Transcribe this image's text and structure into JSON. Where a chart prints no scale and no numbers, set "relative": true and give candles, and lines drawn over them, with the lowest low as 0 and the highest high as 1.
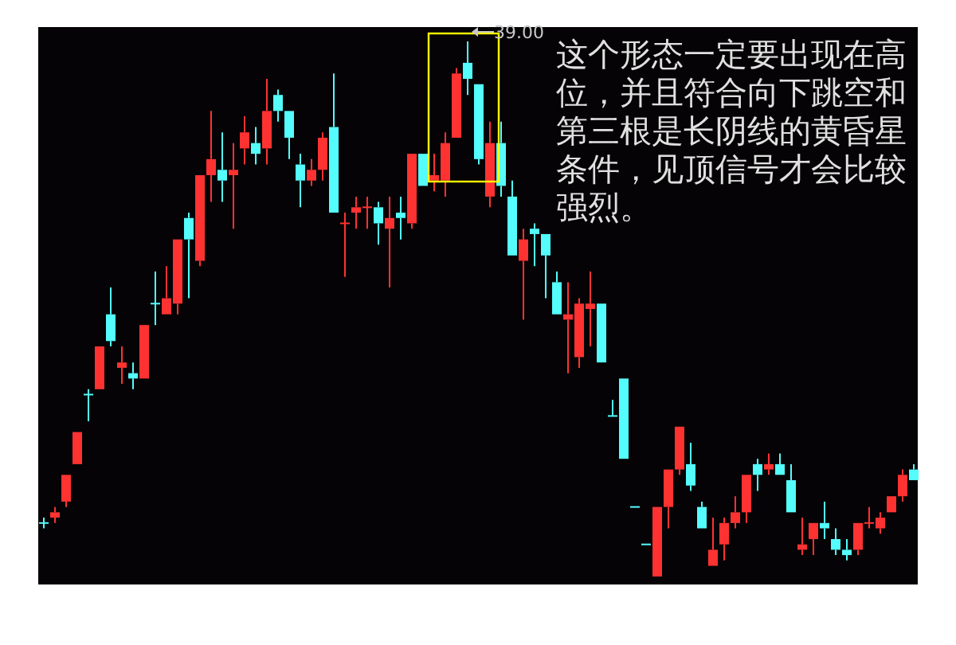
{
  "chart_data": {
    "type": "candlestick",
    "relative": true,
    "categories": [
      null,
      null,
      null,
      null,
      null,
      null,
      null,
      null,
      null,
      null,
      null,
      null,
      null,
      null,
      null,
      null,
      null,
      null,
      null,
      null,
      null,
      null,
      null,
      null,
      null,
      null,
      null,
      null,
      null,
      null,
      null,
      null,
      null,
      null,
      null,
      null,
      null,
      null,
      null,
      null,
      null,
      null,
      null,
      null,
      null,
      null,
      null,
      null,
      null,
      null,
      null,
      null,
      null,
      null,
      null,
      null,
      null,
      null,
      null,
      null,
      null,
      null,
      null,
      null,
      null,
      null,
      null,
      null,
      null,
      null,
      null,
      null,
      null,
      null,
      null,
      null,
      null,
      null,
      null
    ],
    "ohlc": [
      [
        0.1,
        0.11,
        0.09,
        0.1
      ],
      [
        0.11,
        0.13,
        0.1,
        0.12
      ],
      [
        0.14,
        0.19,
        0.13,
        0.19
      ],
      [
        0.21,
        0.27,
        0.21,
        0.27
      ],
      [
        0.34,
        0.35,
        0.29,
        0.34
      ],
      [
        0.35,
        0.43,
        0.35,
        0.43
      ],
      [
        0.49,
        0.54,
        0.43,
        0.44
      ],
      [
        0.39,
        0.43,
        0.36,
        0.4
      ],
      [
        0.38,
        0.4,
        0.35,
        0.37
      ],
      [
        0.37,
        0.47,
        0.37,
        0.47
      ],
      [
        0.51,
        0.57,
        0.47,
        0.51
      ],
      [
        0.49,
        0.58,
        0.49,
        0.52
      ],
      [
        0.51,
        0.63,
        0.49,
        0.63
      ],
      [
        0.67,
        0.68,
        0.52,
        0.63
      ],
      [
        0.59,
        0.75,
        0.58,
        0.75
      ],
      [
        0.75,
        0.87,
        0.7,
        0.78
      ],
      [
        0.76,
        0.83,
        0.7,
        0.74
      ],
      [
        0.75,
        0.81,
        0.65,
        0.76
      ],
      [
        0.8,
        0.86,
        0.77,
        0.83
      ],
      [
        0.81,
        0.84,
        0.77,
        0.79
      ],
      [
        0.8,
        0.93,
        0.77,
        0.87
      ],
      [
        0.9,
        0.91,
        0.85,
        0.87
      ],
      [
        0.87,
        0.87,
        0.78,
        0.82
      ],
      [
        0.77,
        0.79,
        0.69,
        0.74
      ],
      [
        0.74,
        0.78,
        0.73,
        0.76
      ],
      [
        0.76,
        0.83,
        0.74,
        0.82
      ],
      [
        0.84,
        0.94,
        0.68,
        0.68
      ],
      [
        0.66,
        0.68,
        0.56,
        0.66
      ],
      [
        0.68,
        0.71,
        0.65,
        0.69
      ],
      [
        0.69,
        0.71,
        0.65,
        0.69
      ],
      [
        0.69,
        0.7,
        0.62,
        0.66
      ],
      [
        0.65,
        0.71,
        0.54,
        0.67
      ],
      [
        0.68,
        0.71,
        0.63,
        0.67
      ],
      [
        0.66,
        0.79,
        0.65,
        0.79
      ],
      [
        0.79,
        0.79,
        0.73,
        0.73
      ],
      [
        0.74,
        0.79,
        0.72,
        0.75
      ],
      [
        0.74,
        0.83,
        0.71,
        0.81
      ],
      [
        0.82,
        0.95,
        0.82,
        0.94
      ],
      [
        0.96,
        1,
        0.9,
        0.93
      ],
      [
        0.92,
        0.92,
        0.77,
        0.78
      ],
      [
        0.71,
        0.85,
        0.69,
        0.81
      ],
      [
        0.81,
        0.85,
        0.71,
        0.73
      ],
      [
        0.71,
        0.74,
        0.6,
        0.6
      ],
      [
        0.59,
        0.65,
        0.48,
        0.63
      ],
      [
        0.65,
        0.66,
        0.58,
        0.64
      ],
      [
        0.64,
        0.64,
        0.52,
        0.6
      ],
      [
        0.55,
        0.57,
        0.49,
        0.49
      ],
      [
        0.48,
        0.55,
        0.38,
        0.49
      ],
      [
        0.41,
        0.52,
        0.39,
        0.51
      ],
      [
        0.5,
        0.57,
        0.43,
        0.51
      ],
      [
        0.51,
        0.51,
        0.4,
        0.4
      ],
      [
        0.3,
        0.33,
        0.3,
        0.3
      ],
      [
        0.37,
        0.37,
        0.22,
        0.22
      ],
      [
        0.13,
        0.13,
        0.13,
        0.13
      ],
      [
        0.06,
        0.06,
        0.06,
        0.06
      ],
      [
        0,
        0.13,
        0,
        0.13
      ],
      [
        0.13,
        0.2,
        0.09,
        0.2
      ],
      [
        0.2,
        0.28,
        0.19,
        0.28
      ],
      [
        0.21,
        0.25,
        0.16,
        0.17
      ],
      [
        0.13,
        0.14,
        0.09,
        0.09
      ],
      [
        0.02,
        0.11,
        0.02,
        0.05
      ],
      [
        0.06,
        0.11,
        0.03,
        0.1
      ],
      [
        0.1,
        0.15,
        0.09,
        0.12
      ],
      [
        0.12,
        0.19,
        0.1,
        0.19
      ],
      [
        0.21,
        0.22,
        0.16,
        0.19
      ],
      [
        0.2,
        0.23,
        0.19,
        0.21
      ],
      [
        0.21,
        0.23,
        0.19,
        0.19
      ],
      [
        0.18,
        0.21,
        0.12,
        0.12
      ],
      [
        0.05,
        0.11,
        0.04,
        0.06
      ],
      [
        0.07,
        0.1,
        0.04,
        0.1
      ],
      [
        0.1,
        0.14,
        0.07,
        0.09
      ],
      [
        0.07,
        0.09,
        0.04,
        0.05
      ],
      [
        0.05,
        0.07,
        0.03,
        0.04
      ],
      [
        0.05,
        0.1,
        0.04,
        0.1
      ],
      [
        0.1,
        0.13,
        0.09,
        0.1
      ],
      [
        0.09,
        0.12,
        0.08,
        0.11
      ],
      [
        0.12,
        0.15,
        0.12,
        0.15
      ],
      [
        0.15,
        0.2,
        0.14,
        0.19
      ],
      [
        0.2,
        0.21,
        0.18,
        0.18
      ]
    ],
    "colors": [
      "#54fcfc",
      "#ff3232",
      "#ff3232",
      "#ff3232",
      "#54fcfc",
      "#ff3232",
      "#54fcfc",
      "#ff3232",
      "#54fcfc",
      "#ff3232",
      "#54fcfc",
      "#ff3232",
      "#ff3232",
      "#54fcfc",
      "#ff3232",
      "#ff3232",
      "#54fcfc",
      "#ff3232",
      "#ff3232",
      "#54fcfc",
      "#ff3232",
      "#54fcfc",
      "#54fcfc",
      "#54fcfc",
      "#ff3232",
      "#ff3232",
      "#54fcfc",
      "#ff3232",
      "#ff3232",
      "#ff3232",
      "#54fcfc",
      "#ff3232",
      "#54fcfc",
      "#ff3232",
      "#54fcfc",
      "#ff3232",
      "#ff3232",
      "#ff3232",
      "#54fcfc",
      "#54fcfc",
      "#ff3232",
      "#54fcfc",
      "#54fcfc",
      "#ff3232",
      "#54fcfc",
      "#54fcfc",
      "#54fcfc",
      "#ff3232",
      "#ff3232",
      "#ff3232",
      "#54fcfc",
      "#54fcfc",
      "#54fcfc",
      "#54fcfc",
      "#54fcfc",
      "#ff3232",
      "#ff3232",
      "#ff3232",
      "#54fcfc",
      "#54fcfc",
      "#ff3232",
      "#ff3232",
      "#ff3232",
      "#ff3232",
      "#54fcfc",
      "#ff3232",
      "#54fcfc",
      "#54fcfc",
      "#ff3232",
      "#ff3232",
      "#54fcfc",
      "#54fcfc",
      "#54fcfc",
      "#ff3232",
      "#ff3232",
      "#ff3232",
      "#ff3232",
      "#ff3232",
      "#54fcfc"
    ],
    "annotations": [
      "39.00",
      "这个形态一定要出现在高位，并且符合向下跳空和第三根是长阴线的黄昏星条件，见顶信号才会比较强烈。"
    ]
  }
}
